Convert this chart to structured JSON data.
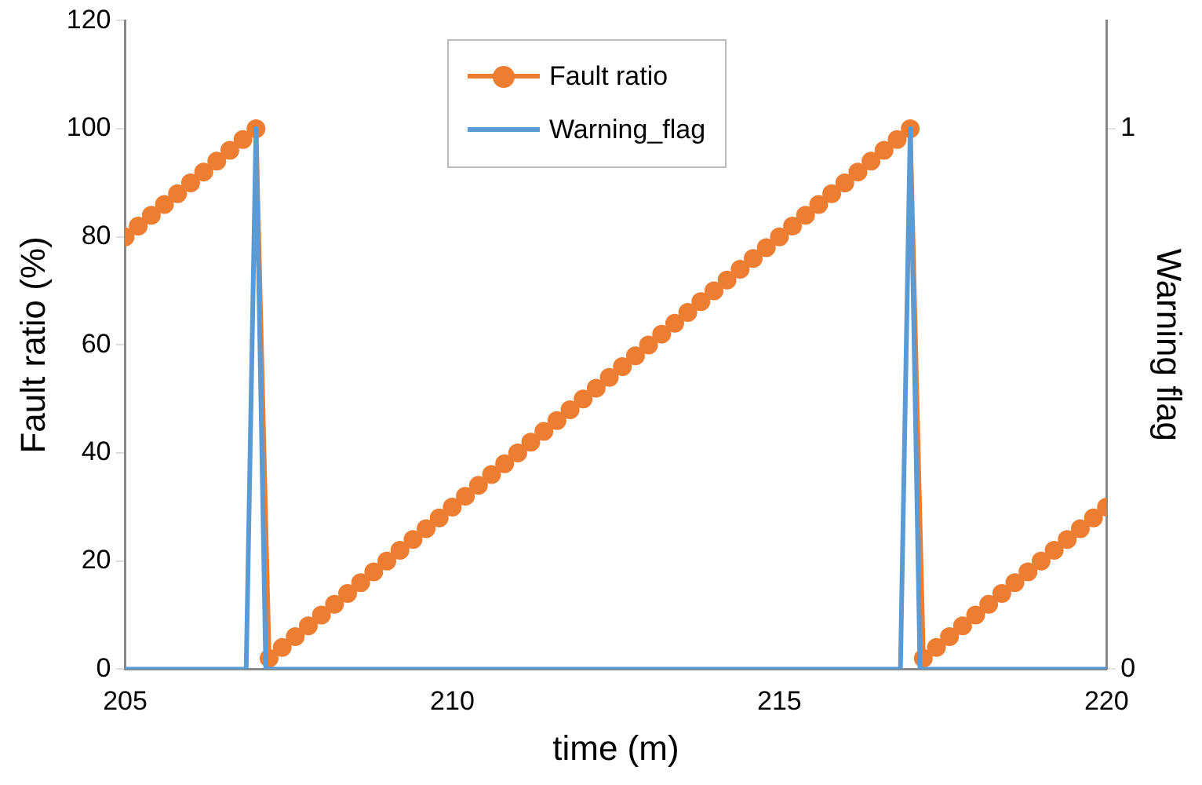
{
  "chart_data": {
    "type": "line",
    "xlabel": "time (m)",
    "ylabel": "Fault ratio (%)",
    "y2label": "Warning flag",
    "xlim": [
      205,
      220
    ],
    "xticks": [
      205,
      210,
      215,
      220
    ],
    "ylim": [
      0,
      120
    ],
    "yticks": [
      0,
      20,
      40,
      60,
      80,
      100,
      120
    ],
    "y2lim": [
      0,
      1.2
    ],
    "y2ticks": [
      0,
      1
    ],
    "grid": false,
    "legend": "top",
    "line_style": "solid",
    "series": [
      {
        "name": "Fault ratio",
        "color": "#ed7d31",
        "marker": "circle",
        "x": [
          205,
          205.2,
          205.4,
          205.6,
          205.8,
          206,
          206.2,
          206.4,
          206.6,
          206.8,
          207,
          207.2,
          207.4,
          207.6,
          207.8,
          208,
          208.2,
          208.4,
          208.6,
          208.8,
          209,
          209.2,
          209.4,
          209.6,
          209.8,
          210,
          210.2,
          210.4,
          210.6,
          210.8,
          211,
          211.2,
          211.4,
          211.6,
          211.8,
          212,
          212.2,
          212.4,
          212.6,
          212.8,
          213,
          213.2,
          213.4,
          213.6,
          213.8,
          214,
          214.2,
          214.4,
          214.6,
          214.8,
          215,
          215.2,
          215.4,
          215.6,
          215.8,
          216,
          216.2,
          216.4,
          216.6,
          216.8,
          217,
          217.2,
          217.4,
          217.6,
          217.8,
          218,
          218.2,
          218.4,
          218.6,
          218.8,
          219,
          219.2,
          219.4,
          219.6,
          219.8,
          220
        ],
        "values": [
          80,
          82,
          84,
          86,
          88,
          90,
          92,
          94,
          96,
          98,
          100,
          2,
          4,
          6,
          8,
          10,
          12,
          14,
          16,
          18,
          20,
          22,
          24,
          26,
          28,
          30,
          32,
          34,
          36,
          38,
          40,
          42,
          44,
          46,
          48,
          50,
          52,
          54,
          56,
          58,
          60,
          62,
          64,
          66,
          68,
          70,
          72,
          74,
          76,
          78,
          80,
          82,
          84,
          86,
          88,
          90,
          92,
          94,
          96,
          98,
          100,
          2,
          4,
          6,
          8,
          10,
          12,
          14,
          16,
          18,
          20,
          22,
          24,
          26,
          28,
          30
        ]
      },
      {
        "name": "Warning_flag",
        "color": "#5b9bd5",
        "marker": "none",
        "axis": "y2",
        "x": [
          205,
          206.85,
          207,
          207.15,
          216.85,
          217,
          217.15,
          220
        ],
        "values": [
          0,
          0,
          1,
          0,
          0,
          1,
          0,
          0
        ]
      }
    ]
  }
}
